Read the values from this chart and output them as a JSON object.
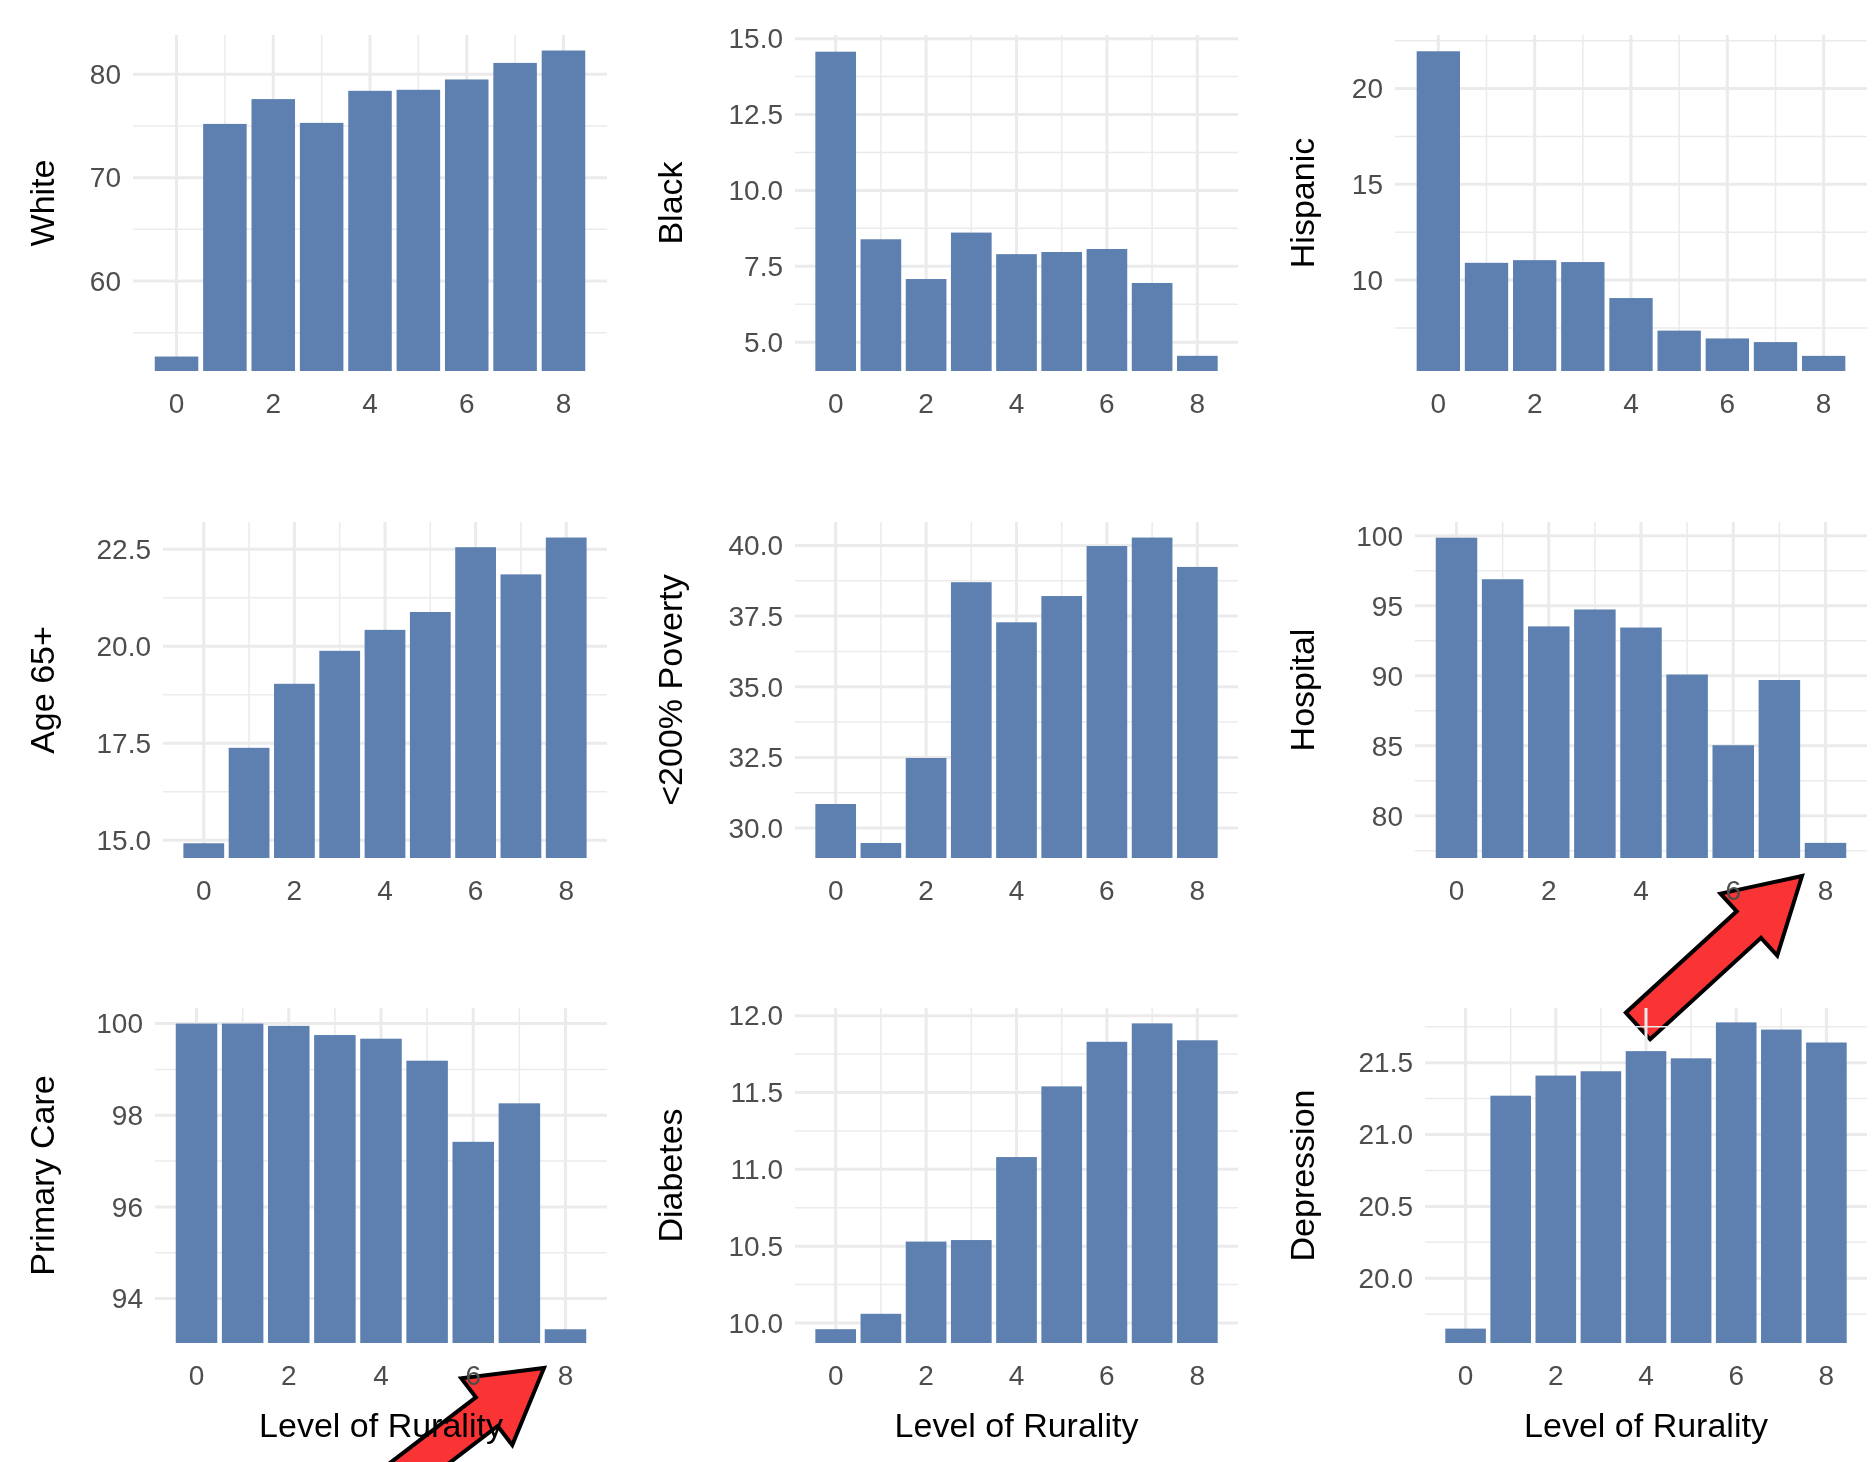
{
  "chart_data": [
    {
      "type": "bar",
      "ylabel": "White",
      "x": [
        0,
        1,
        2,
        3,
        4,
        5,
        6,
        7,
        8
      ],
      "values": [
        52.7,
        75.2,
        77.6,
        75.3,
        78.4,
        78.5,
        79.5,
        81.1,
        82.3
      ],
      "color": "#5d80b1",
      "xlim": [
        -0.9,
        8.9
      ],
      "xticks": [
        0,
        2,
        4,
        6,
        8
      ],
      "ylim": [
        51.3,
        83.8
      ],
      "yticks": [
        60,
        70,
        80
      ],
      "grid": true
    },
    {
      "type": "bar",
      "ylabel": "Black",
      "x": [
        0,
        1,
        2,
        3,
        4,
        5,
        6,
        7,
        8
      ],
      "values": [
        14.57,
        8.39,
        7.08,
        8.61,
        7.9,
        7.97,
        8.07,
        6.95,
        4.55
      ],
      "color": "#5d80b1",
      "xlim": [
        -0.9,
        8.9
      ],
      "xticks": [
        0,
        2,
        4,
        6,
        8
      ],
      "ylim": [
        4.05,
        15.12
      ],
      "yticks": [
        {
          "value": 5,
          "label": "5.0"
        },
        7.5,
        {
          "value": 10,
          "label": "10.0"
        },
        12.5,
        {
          "value": 15,
          "label": "15.0"
        }
      ],
      "grid": true
    },
    {
      "type": "bar",
      "ylabel": "Hispanic",
      "x": [
        0,
        1,
        2,
        3,
        4,
        5,
        6,
        7,
        8
      ],
      "values": [
        21.95,
        10.9,
        11.04,
        10.94,
        9.06,
        7.36,
        6.95,
        6.76,
        6.04
      ],
      "color": "#5d80b1",
      "xlim": [
        -0.9,
        8.9
      ],
      "xticks": [
        0,
        2,
        4,
        6,
        8
      ],
      "ylim": [
        5.25,
        22.8
      ],
      "yticks": [
        10,
        15,
        20
      ],
      "grid": true
    },
    {
      "type": "bar",
      "ylabel": "Age 65+",
      "x": [
        0,
        1,
        2,
        3,
        4,
        5,
        6,
        7,
        8
      ],
      "values": [
        14.92,
        17.38,
        19.03,
        19.88,
        20.42,
        20.88,
        22.55,
        21.85,
        22.8
      ],
      "color": "#5d80b1",
      "xlim": [
        -0.9,
        8.9
      ],
      "xticks": [
        0,
        2,
        4,
        6,
        8
      ],
      "ylim": [
        14.54,
        23.2
      ],
      "yticks": [
        {
          "value": 15,
          "label": "15.0"
        },
        17.5,
        {
          "value": 20,
          "label": "20.0"
        },
        22.5
      ],
      "grid": true
    },
    {
      "type": "bar",
      "ylabel": "<200% Poverty",
      "x": [
        0,
        1,
        2,
        3,
        4,
        5,
        6,
        7,
        8
      ],
      "values": [
        30.85,
        29.47,
        32.48,
        38.7,
        37.28,
        38.21,
        39.98,
        40.28,
        39.24
      ],
      "color": "#5d80b1",
      "xlim": [
        -0.9,
        8.9
      ],
      "xticks": [
        0,
        2,
        4,
        6,
        8
      ],
      "ylim": [
        28.94,
        40.83
      ],
      "yticks": [
        {
          "value": 30,
          "label": "30.0"
        },
        32.5,
        {
          "value": 35,
          "label": "35.0"
        },
        37.5,
        {
          "value": 40,
          "label": "40.0"
        }
      ],
      "grid": true
    },
    {
      "type": "bar",
      "ylabel": "Hospital",
      "x": [
        0,
        1,
        2,
        3,
        4,
        5,
        6,
        7,
        8
      ],
      "values": [
        99.87,
        96.9,
        93.53,
        94.74,
        93.45,
        90.09,
        85.04,
        89.7,
        78.06
      ],
      "color": "#5d80b1",
      "xlim": [
        -0.9,
        8.9
      ],
      "xticks": [
        0,
        2,
        4,
        6,
        8
      ],
      "ylim": [
        76.98,
        100.99
      ],
      "yticks": [
        80,
        85,
        90,
        95,
        100
      ],
      "grid": true
    },
    {
      "type": "bar",
      "ylabel": "Primary Care",
      "xlabel": "Level of Rurality",
      "x": [
        0,
        1,
        2,
        3,
        4,
        5,
        6,
        7,
        8
      ],
      "values": [
        100.0,
        100.0,
        99.95,
        99.75,
        99.67,
        99.19,
        97.42,
        98.26,
        93.33
      ],
      "color": "#5d80b1",
      "xlim": [
        -0.9,
        8.9
      ],
      "xticks": [
        0,
        2,
        4,
        6,
        8
      ],
      "ylim": [
        93.03,
        100.34
      ],
      "yticks": [
        94,
        96,
        98,
        100
      ],
      "grid": true
    },
    {
      "type": "bar",
      "ylabel": "Diabetes",
      "xlabel": "Level of Rurality",
      "x": [
        0,
        1,
        2,
        3,
        4,
        5,
        6,
        7,
        8
      ],
      "values": [
        9.96,
        10.06,
        10.53,
        10.54,
        11.08,
        11.54,
        11.83,
        11.95,
        11.84
      ],
      "color": "#5d80b1",
      "xlim": [
        -0.9,
        8.9
      ],
      "xticks": [
        0,
        2,
        4,
        6,
        8
      ],
      "ylim": [
        9.87,
        12.05
      ],
      "yticks": [
        {
          "value": 10,
          "label": "10.0"
        },
        10.5,
        {
          "value": 11,
          "label": "11.0"
        },
        11.5,
        {
          "value": 12,
          "label": "12.0"
        }
      ],
      "grid": true
    },
    {
      "type": "bar",
      "ylabel": "Depression",
      "xlabel": "Level of Rurality",
      "x": [
        0,
        1,
        2,
        3,
        4,
        5,
        6,
        7,
        8
      ],
      "values": [
        19.65,
        21.27,
        21.41,
        21.44,
        21.58,
        21.53,
        21.78,
        21.73,
        21.64
      ],
      "color": "#5d80b1",
      "xlim": [
        -0.9,
        8.9
      ],
      "xticks": [
        0,
        2,
        4,
        6,
        8
      ],
      "ylim": [
        19.55,
        21.88
      ],
      "yticks": [
        {
          "value": 20,
          "label": "20.0"
        },
        20.5,
        {
          "value": 21,
          "label": "21.0"
        },
        21.5
      ],
      "grid": true
    }
  ]
}
